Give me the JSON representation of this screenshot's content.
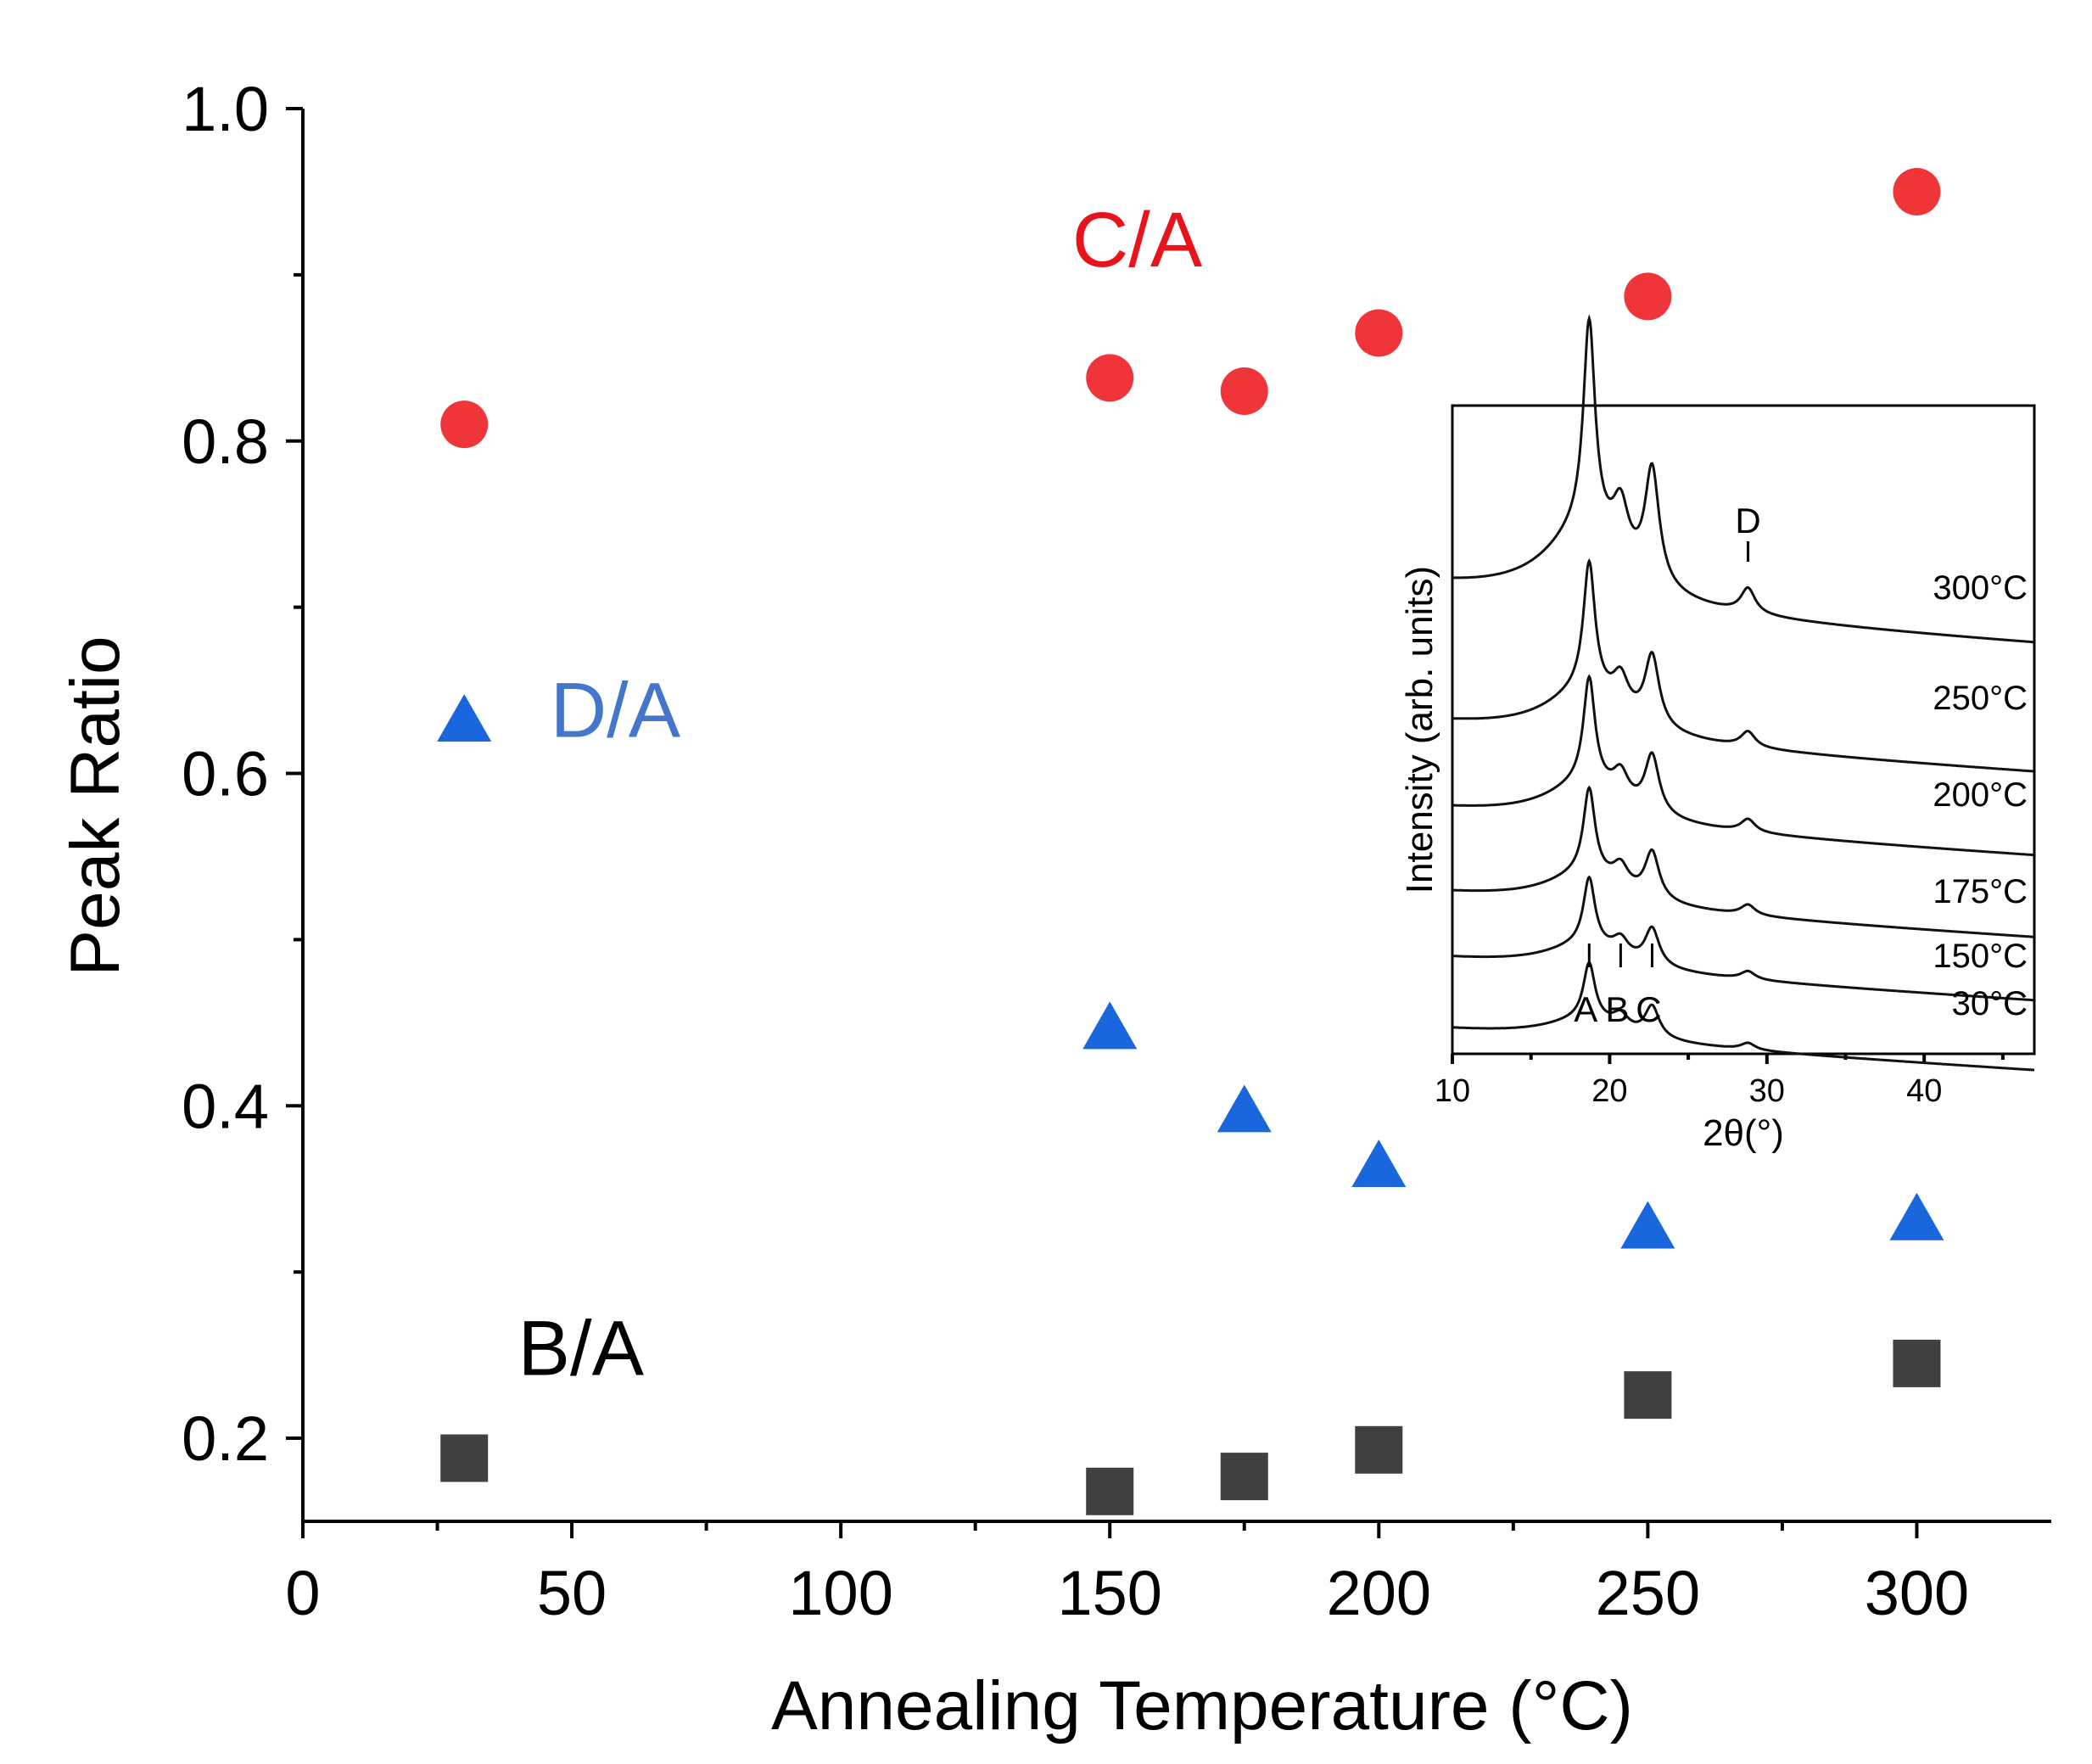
{
  "chart_data": {
    "type": "scatter",
    "title": "",
    "xlabel": "Annealing Temperature (°C)",
    "ylabel": "Peak Ratio",
    "xlim": [
      0,
      325
    ],
    "ylim": [
      0.15,
      1.0
    ],
    "x_ticks": [
      0,
      50,
      100,
      150,
      200,
      250,
      300
    ],
    "y_ticks": [
      0.2,
      0.4,
      0.6,
      0.8,
      1.0
    ],
    "x_tick_labels": [
      "0",
      "50",
      "100",
      "150",
      "200",
      "250",
      "300"
    ],
    "y_tick_labels": [
      "0.2",
      "0.4",
      "0.6",
      "0.8",
      "1.0"
    ],
    "series": [
      {
        "name": "C/A",
        "marker": "circle",
        "color": "#f0353a",
        "label_color": "#e8141c",
        "x": [
          30,
          150,
          175,
          200,
          250,
          300
        ],
        "y": [
          0.81,
          0.838,
          0.83,
          0.865,
          0.887,
          0.95
        ]
      },
      {
        "name": "D/A",
        "marker": "triangle",
        "color": "#1a66dd",
        "label_color": "#4477cc",
        "x": [
          30,
          150,
          175,
          200,
          250,
          300
        ],
        "y": [
          0.63,
          0.445,
          0.395,
          0.362,
          0.325,
          0.33
        ]
      },
      {
        "name": "B/A",
        "marker": "square",
        "color": "#404040",
        "label_color": "#000000",
        "x": [
          30,
          150,
          175,
          200,
          250,
          300
        ],
        "y": [
          0.188,
          0.168,
          0.177,
          0.193,
          0.226,
          0.245
        ]
      }
    ],
    "series_labels": [
      {
        "text": "C/A",
        "at_x": 143,
        "at_y": 0.905
      },
      {
        "text": "D/A",
        "at_x": 46,
        "at_y": 0.622
      },
      {
        "text": "B/A",
        "at_x": 40,
        "at_y": 0.238
      }
    ],
    "inset": {
      "type": "line",
      "xlabel": "2θ(°)",
      "ylabel": "Intensity (arb. units)",
      "xlim": [
        10,
        47
      ],
      "x_ticks": [
        10,
        20,
        30,
        40
      ],
      "x_tick_labels": [
        "10",
        "20",
        "30",
        "40"
      ],
      "traces": [
        {
          "label": "300°C",
          "scale": 1.0
        },
        {
          "label": "250°C",
          "scale": 0.8
        },
        {
          "label": "200°C",
          "scale": 0.75
        },
        {
          "label": "175°C",
          "scale": 0.7
        },
        {
          "label": "150°C",
          "scale": 0.65
        },
        {
          "label": "30°C",
          "scale": 0.6
        }
      ],
      "peaks": [
        {
          "label": "A",
          "position": 18.7
        },
        {
          "label": "B",
          "position": 20.7
        },
        {
          "label": "C",
          "position": 22.7
        },
        {
          "label": "D",
          "position": 28.8
        }
      ]
    }
  }
}
